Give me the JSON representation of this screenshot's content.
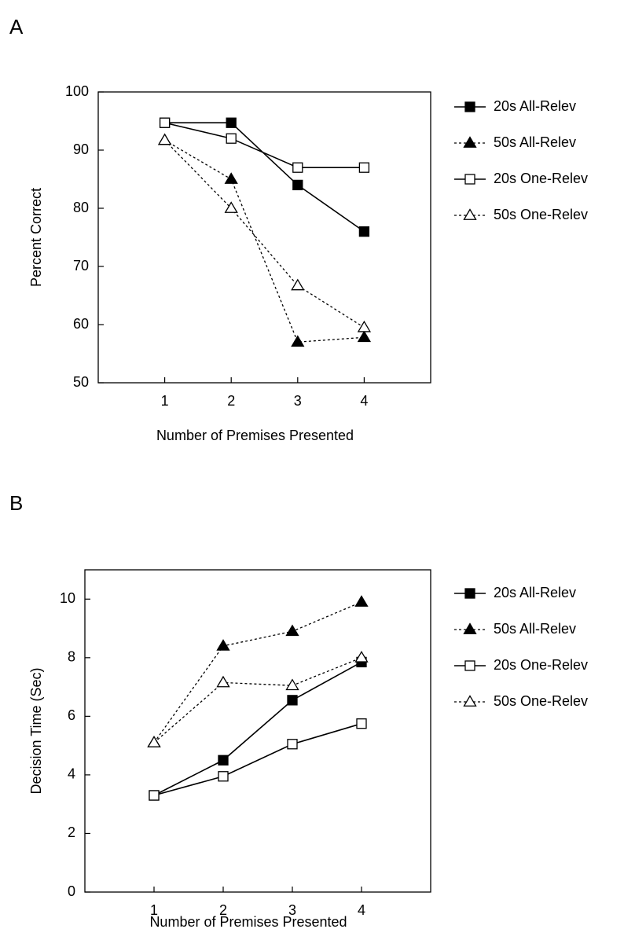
{
  "chart_data": [
    {
      "type": "line",
      "panel_label": "A",
      "xlabel": "Number of Premises Presented",
      "ylabel": "Percent Correct",
      "categories": [
        "1",
        "2",
        "3",
        "4"
      ],
      "xlim": [
        0,
        5
      ],
      "ylim": [
        50,
        100
      ],
      "y_ticks": [
        "50",
        "60",
        "70",
        "80",
        "90",
        "100"
      ],
      "grid": false,
      "legend_position": "right",
      "series": [
        {
          "name": "20s All-Relev",
          "marker": "square-filled",
          "line": "solid",
          "values": [
            94.7,
            94.7,
            84,
            76
          ]
        },
        {
          "name": "50s All-Relev",
          "marker": "triangle-filled",
          "line": "dotted",
          "values": [
            91.7,
            85,
            57,
            57.8
          ]
        },
        {
          "name": "20s One-Relev",
          "marker": "square-open",
          "line": "solid",
          "values": [
            94.7,
            92,
            87,
            87
          ]
        },
        {
          "name": "50s One-Relev",
          "marker": "triangle-open",
          "line": "dotted",
          "values": [
            91.7,
            80,
            66.7,
            59.5
          ]
        }
      ]
    },
    {
      "type": "line",
      "panel_label": "B",
      "xlabel": "Number of Premises Presented",
      "ylabel": "Decision Time (Sec)",
      "categories": [
        "1",
        "2",
        "3",
        "4"
      ],
      "xlim": [
        0,
        5
      ],
      "ylim": [
        0,
        11
      ],
      "y_ticks": [
        "0",
        "2",
        "4",
        "6",
        "8",
        "10"
      ],
      "grid": false,
      "legend_position": "right",
      "series": [
        {
          "name": "20s All-Relev",
          "marker": "square-filled",
          "line": "solid",
          "values": [
            3.3,
            4.5,
            6.55,
            7.85
          ]
        },
        {
          "name": "50s All-Relev",
          "marker": "triangle-filled",
          "line": "dotted",
          "values": [
            5.1,
            8.4,
            8.9,
            9.9
          ]
        },
        {
          "name": "20s One-Relev",
          "marker": "square-open",
          "line": "solid",
          "values": [
            3.3,
            3.95,
            5.05,
            5.75
          ]
        },
        {
          "name": "50s One-Relev",
          "marker": "triangle-open",
          "line": "dotted",
          "values": [
            5.1,
            7.15,
            7.05,
            8.0
          ]
        }
      ]
    }
  ]
}
